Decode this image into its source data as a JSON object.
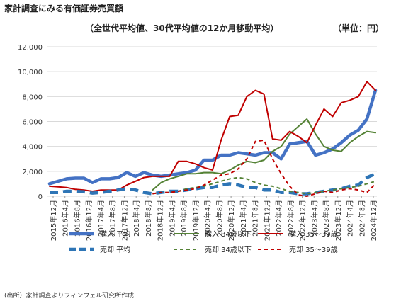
{
  "header": {
    "title": "家計調査にみる有価証券売買額",
    "subtitle": "（全世代平均値、30代平均値の12か月移動平均）",
    "unit": "（単位：円）"
  },
  "source": "(出所）家計調査よりフィンウェル研究所作成",
  "colors": {
    "buy_avg": "#4472C4",
    "buy_34": "#548235",
    "buy_35_39": "#C00000",
    "sell_avg": "#2E75B6",
    "sell_34": "#548235",
    "sell_35_39": "#C00000",
    "grid": "#D9D9D9"
  },
  "chart_data": {
    "type": "line",
    "yticks": [
      "0",
      "2,000",
      "4,000",
      "6,000",
      "8,000",
      "10,000",
      "12,000"
    ],
    "ylim": [
      0,
      12000
    ],
    "grid": true,
    "legend_position": "bottom",
    "xlabels": [
      "2015年12月",
      "2016年4月",
      "2016年8月",
      "2016年12月",
      "2017年4月",
      "2017年8月",
      "2017年12月",
      "2018年4月",
      "2018年8月",
      "2018年12月",
      "2019年4月",
      "2019年8月",
      "2019年12月",
      "2020年4月",
      "2020年8月",
      "2020年12月",
      "2021年4月",
      "2021年8月",
      "2021年12月",
      "2022年4月",
      "2022年8月",
      "2022年12月",
      "2023年4月",
      "2023年8月",
      "2023年12月",
      "2024年4月",
      "2024年8月",
      "2024年12月"
    ],
    "series": [
      {
        "name": "購入 平均",
        "color": "#4472C4",
        "style": "solid",
        "width": 4.5,
        "values": [
          1000,
          1200,
          1400,
          1450,
          1450,
          1100,
          1400,
          1400,
          1500,
          1900,
          1600,
          1900,
          1700,
          1600,
          1700,
          1800,
          1900,
          2100,
          2900,
          2900,
          3300,
          3300,
          3500,
          3400,
          3300,
          3500,
          3500,
          3000,
          4200,
          4300,
          4400,
          3300,
          3500,
          3800,
          4300,
          4900,
          5300,
          6200,
          8500
        ]
      },
      {
        "name": "購入 34歳以下",
        "color": "#548235",
        "style": "solid",
        "width": 2,
        "values": [
          null,
          null,
          null,
          null,
          null,
          null,
          null,
          null,
          null,
          null,
          null,
          null,
          500,
          1100,
          1400,
          1600,
          1800,
          1800,
          1900,
          1900,
          1800,
          2100,
          2500,
          2800,
          2700,
          2900,
          3600,
          4000,
          5000,
          5600,
          6200,
          5000,
          4000,
          3700,
          3600,
          4300,
          4800,
          5200,
          5100
        ]
      },
      {
        "name": "購入 35～39歳",
        "color": "#C00000",
        "style": "solid",
        "width": 2,
        "values": [
          800,
          750,
          700,
          550,
          500,
          400,
          500,
          500,
          500,
          900,
          1200,
          1500,
          1600,
          1600,
          1600,
          2800,
          2800,
          2600,
          2300,
          2100,
          4500,
          6400,
          6500,
          8000,
          8500,
          8200,
          4600,
          4500,
          5200,
          4800,
          4300,
          5700,
          7000,
          6400,
          7500,
          7700,
          8000,
          9200,
          8500
        ]
      },
      {
        "name": "売却 平均",
        "color": "#2E75B6",
        "style": "dashed",
        "width": 4.5,
        "values": [
          300,
          300,
          400,
          400,
          350,
          250,
          300,
          400,
          500,
          600,
          500,
          300,
          200,
          300,
          400,
          400,
          500,
          600,
          700,
          700,
          900,
          1000,
          900,
          700,
          700,
          500,
          500,
          300,
          300,
          200,
          200,
          300,
          400,
          500,
          600,
          800,
          900,
          1500,
          1800
        ]
      },
      {
        "name": "売却 34歳以下",
        "color": "#548235",
        "style": "dashed",
        "width": 2,
        "values": [
          null,
          null,
          null,
          null,
          null,
          null,
          null,
          null,
          null,
          null,
          null,
          null,
          200,
          300,
          300,
          400,
          600,
          700,
          800,
          1000,
          1200,
          1400,
          1500,
          1400,
          1100,
          900,
          800,
          600,
          400,
          300,
          200,
          300,
          400,
          500,
          600,
          700,
          800,
          1000,
          1200
        ]
      },
      {
        "name": "売却 35～39歳",
        "color": "#C00000",
        "style": "dashed",
        "width": 2,
        "values": [
          null,
          null,
          null,
          null,
          null,
          null,
          null,
          null,
          null,
          null,
          null,
          null,
          200,
          300,
          300,
          400,
          500,
          600,
          900,
          1300,
          1700,
          1800,
          2200,
          3000,
          4400,
          4500,
          3000,
          1800,
          800,
          100,
          0,
          200,
          400,
          300,
          500,
          600,
          500,
          300,
          1000
        ]
      }
    ]
  }
}
